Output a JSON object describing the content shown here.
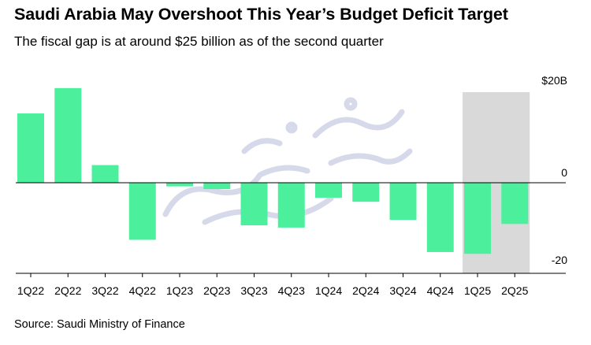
{
  "title": "Saudi Arabia May Overshoot This Year’s Budget Deficit Target",
  "subtitle": "The fiscal gap is at around $25 billion as of the second quarter",
  "source": "Source: Saudi Ministry of Finance",
  "colors": {
    "bar": "#4cf09c",
    "highlight": "#d9d9d9",
    "axis": "#000000",
    "watermark": "#c9cde3"
  },
  "chart_data": {
    "type": "bar",
    "title": "Saudi Arabia May Overshoot This Year’s Budget Deficit Target",
    "subtitle": "The fiscal gap is at around $25 billion as of the second quarter",
    "xlabel": "",
    "ylabel": "",
    "categories": [
      "1Q22",
      "2Q22",
      "3Q22",
      "4Q22",
      "1Q23",
      "2Q23",
      "3Q23",
      "4Q23",
      "1Q24",
      "2Q24",
      "3Q24",
      "4Q24",
      "1Q25",
      "2Q25"
    ],
    "values": [
      15.3,
      20.9,
      3.9,
      -12.6,
      -0.8,
      -1.4,
      -9.4,
      -9.9,
      -3.3,
      -4.2,
      -8.2,
      -15.3,
      -15.7,
      -9.1
    ],
    "ylim": [
      -20,
      20
    ],
    "y_ticks": [
      -20,
      0,
      20
    ],
    "y_tick_labels": [
      "-20",
      "0",
      "$20B"
    ],
    "highlight_categories": [
      "1Q25",
      "2Q25"
    ],
    "units": "billion USD",
    "grid": false
  }
}
